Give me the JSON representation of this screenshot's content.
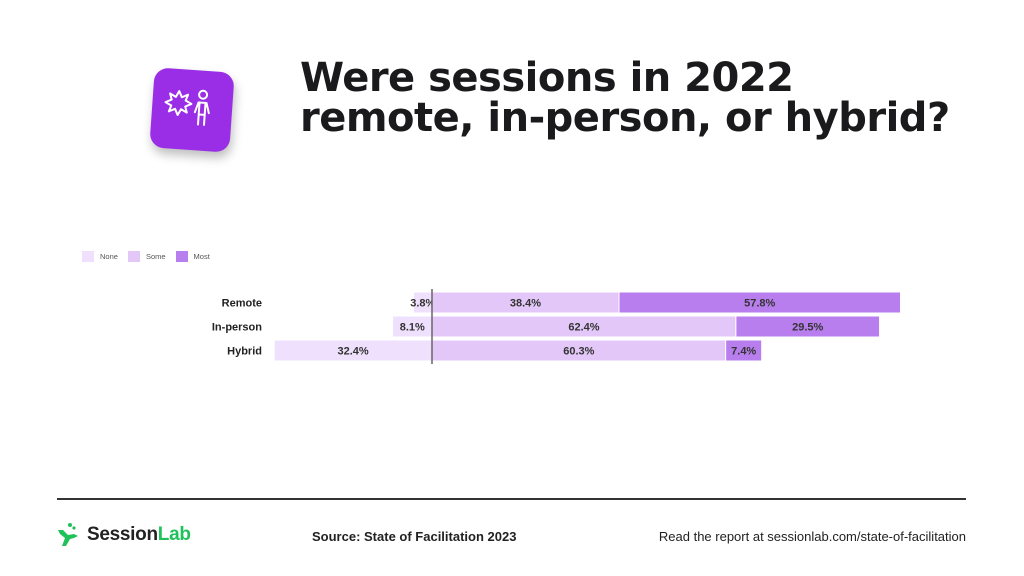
{
  "header": {
    "title_line1": "Were sessions in 2022",
    "title_line2": "remote, in-person, or hybrid?",
    "icon": "sparkle-person-icon",
    "icon_color": "#9a2ee6"
  },
  "chart_data": {
    "type": "bar",
    "orientation": "horizontal",
    "stacked": true,
    "diverging": true,
    "categories": [
      "Remote",
      "In-person",
      "Hybrid"
    ],
    "series": [
      {
        "name": "None",
        "color": "#efe0fd",
        "values": [
          3.8,
          8.1,
          32.4
        ],
        "labels": [
          "3.8%",
          "8.1%",
          "32.4%"
        ]
      },
      {
        "name": "Some",
        "color": "#e3c7f9",
        "values": [
          38.4,
          62.4,
          60.3
        ],
        "labels": [
          "38.4%",
          "62.4%",
          "60.3%"
        ]
      },
      {
        "name": "Most",
        "color": "#b97eee",
        "values": [
          57.8,
          29.5,
          7.4
        ],
        "labels": [
          "57.8%",
          "29.5%",
          "7.4%"
        ]
      }
    ],
    "legend": [
      "None",
      "Some",
      "Most"
    ],
    "legend_position": "top-left",
    "unit": "%",
    "grid": false
  },
  "footer": {
    "logo_main": "Session",
    "logo_accent": "Lab",
    "logo_color": "#1fc25a",
    "source": "Source: State of Facilitation 2023",
    "read_more": "Read the report at sessionlab.com/state-of-facilitation"
  }
}
